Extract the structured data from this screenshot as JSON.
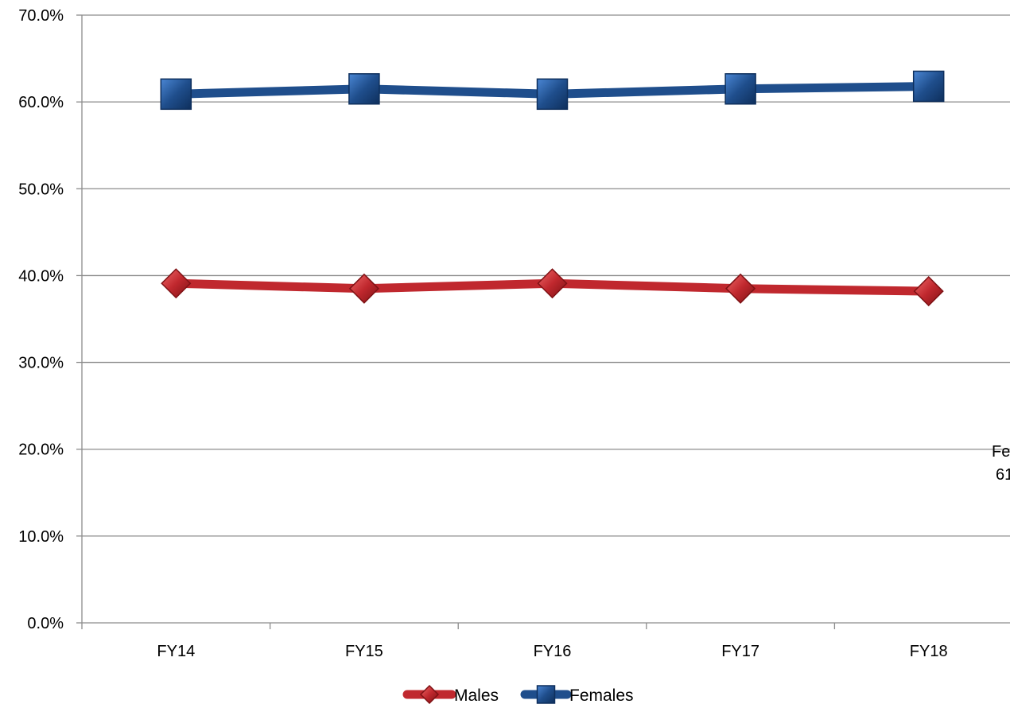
{
  "chart_data": {
    "type": "line",
    "categories": [
      "FY14",
      "FY15",
      "FY16",
      "FY17",
      "FY18"
    ],
    "series": [
      {
        "name": "Males",
        "values": [
          39.1,
          38.5,
          39.1,
          38.5,
          38.2
        ],
        "color": "#c0282e",
        "marker": "diamond"
      },
      {
        "name": "Females",
        "values": [
          60.9,
          61.5,
          60.9,
          61.5,
          61.8
        ],
        "color": "#1f4e8c",
        "marker": "square"
      }
    ],
    "yticks": [
      "0.0%",
      "10.0%",
      "20.0%",
      "30.0%",
      "40.0%",
      "50.0%",
      "60.0%",
      "70.0%"
    ],
    "ylim": [
      0,
      70
    ],
    "grid": true,
    "legend": "bottom",
    "annotations": [
      {
        "line1": "Fe",
        "line2": "61"
      }
    ]
  }
}
